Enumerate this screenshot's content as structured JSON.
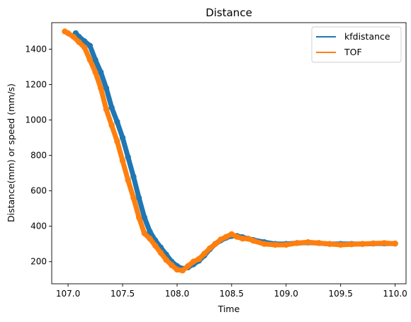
{
  "chart_data": {
    "type": "line",
    "title": "Distance",
    "xlabel": "Time",
    "ylabel": "Distance(mm) or speed (mm/s)",
    "xlim": [
      106.85,
      110.1
    ],
    "ylim": [
      75,
      1550
    ],
    "xticks": [
      "107.0",
      "107.5",
      "108.0",
      "108.5",
      "109.0",
      "109.5",
      "110.0"
    ],
    "xtick_values": [
      107.0,
      107.5,
      108.0,
      108.5,
      109.0,
      109.5,
      110.0
    ],
    "yticks": [
      "200",
      "400",
      "600",
      "800",
      "1000",
      "1200",
      "1400"
    ],
    "ytick_values": [
      200,
      400,
      600,
      800,
      1000,
      1200,
      1400
    ],
    "grid": false,
    "legend_position": "top-right",
    "series": [
      {
        "name": "kfdistance",
        "color": "#1f77b4",
        "markers": true,
        "x": [
          107.07,
          107.1,
          107.15,
          107.2,
          107.25,
          107.3,
          107.35,
          107.4,
          107.45,
          107.5,
          107.55,
          107.6,
          107.65,
          107.7,
          107.75,
          107.8,
          107.85,
          107.9,
          107.95,
          108.0,
          108.05,
          108.1,
          108.15,
          108.2,
          108.25,
          108.3,
          108.35,
          108.4,
          108.45,
          108.5,
          108.55,
          108.6,
          108.65,
          108.7,
          108.8,
          108.9,
          109.0,
          109.1,
          109.2,
          109.3,
          109.4,
          109.5,
          109.6,
          109.7,
          109.8,
          109.9,
          110.0
        ],
        "values": [
          1490,
          1470,
          1445,
          1420,
          1340,
          1270,
          1180,
          1070,
          990,
          900,
          790,
          680,
          560,
          450,
          370,
          320,
          280,
          240,
          200,
          175,
          160,
          168,
          185,
          205,
          235,
          270,
          300,
          320,
          335,
          345,
          345,
          338,
          330,
          322,
          310,
          300,
          300,
          305,
          308,
          305,
          300,
          300,
          300,
          300,
          302,
          303,
          302
        ]
      },
      {
        "name": "TOF",
        "color": "#ff7f0e",
        "markers": true,
        "x": [
          106.97,
          107.0,
          107.05,
          107.1,
          107.15,
          107.2,
          107.25,
          107.3,
          107.35,
          107.4,
          107.45,
          107.5,
          107.55,
          107.6,
          107.65,
          107.7,
          107.75,
          107.8,
          107.85,
          107.9,
          107.95,
          108.0,
          108.05,
          108.1,
          108.15,
          108.2,
          108.25,
          108.3,
          108.35,
          108.4,
          108.45,
          108.5,
          108.55,
          108.6,
          108.65,
          108.7,
          108.8,
          108.9,
          109.0,
          109.1,
          109.2,
          109.3,
          109.4,
          109.5,
          109.6,
          109.7,
          109.8,
          109.9,
          110.0
        ],
        "values": [
          1500,
          1490,
          1470,
          1440,
          1410,
          1340,
          1270,
          1180,
          1060,
          970,
          880,
          770,
          660,
          560,
          450,
          360,
          330,
          290,
          250,
          210,
          180,
          155,
          150,
          175,
          200,
          215,
          245,
          275,
          300,
          325,
          340,
          355,
          340,
          330,
          330,
          318,
          300,
          295,
          295,
          305,
          310,
          305,
          300,
          295,
          298,
          300,
          303,
          305,
          302
        ]
      }
    ]
  }
}
